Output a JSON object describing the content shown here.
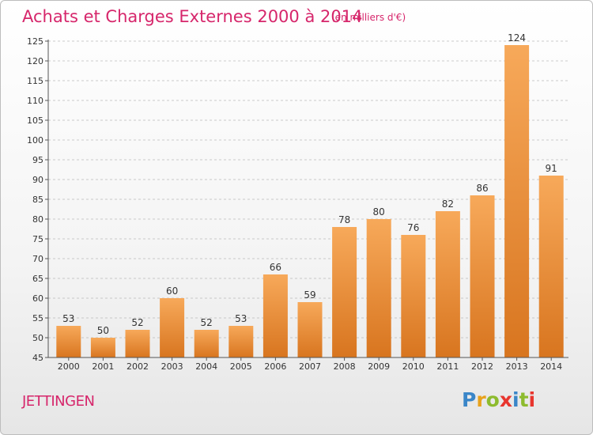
{
  "title": "Achats et Charges Externes 2000 à 2014",
  "subtitle": "(en milliers d'€)",
  "place": "JETTINGEN",
  "logo": {
    "letters": [
      "P",
      "r",
      "o",
      "x",
      "i",
      "t",
      "i"
    ],
    "colors": [
      "#3a86c8",
      "#e8a21b",
      "#8dbb2e",
      "#e8352e",
      "#3a86c8",
      "#8dbb2e",
      "#e8352e"
    ]
  },
  "colors": {
    "bar_top": "#f7a95a",
    "bar_bottom": "#d8751f",
    "title": "#d6266b",
    "grid": "#bbbbbb"
  },
  "chart_data": {
    "type": "bar",
    "title": "Achats et Charges Externes 2000 à 2014",
    "subtitle": "(en milliers d'€)",
    "xlabel": "",
    "ylabel": "",
    "categories": [
      "2000",
      "2001",
      "2002",
      "2003",
      "2004",
      "2005",
      "2006",
      "2007",
      "2008",
      "2009",
      "2010",
      "2011",
      "2012",
      "2013",
      "2014"
    ],
    "values": [
      53,
      50,
      52,
      60,
      52,
      53,
      66,
      59,
      78,
      80,
      76,
      82,
      86,
      124,
      91
    ],
    "ylim": [
      45,
      125
    ],
    "yticks": [
      45,
      50,
      55,
      60,
      65,
      70,
      75,
      80,
      85,
      90,
      95,
      100,
      105,
      110,
      115,
      120,
      125
    ],
    "grid": true
  }
}
